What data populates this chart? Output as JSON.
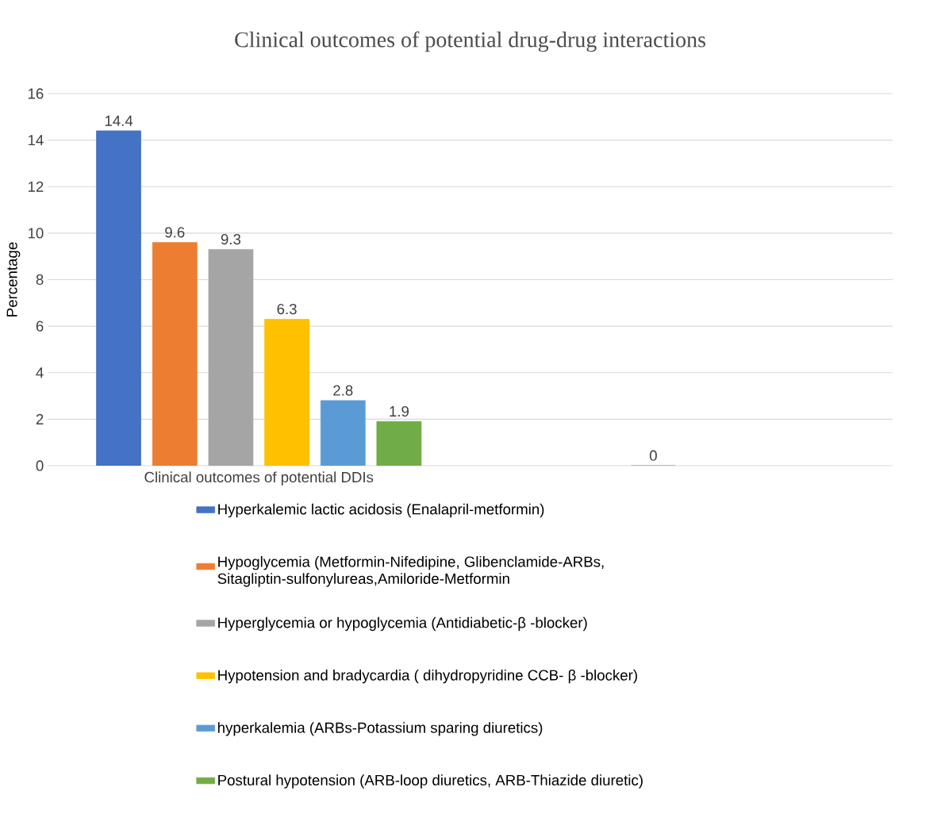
{
  "chart_data": {
    "type": "bar",
    "title": "Clinical outcomes of potential drug-drug interactions",
    "ylabel": "Percentage",
    "categories": [
      "Clinical outcomes of potential DDIs",
      null
    ],
    "series": [
      {
        "name": "Hyperkalemic lactic acidosis (Enalapril-metformin)",
        "color": "#4472c4",
        "values": [
          14.4,
          null
        ]
      },
      {
        "name": "Hypoglycemia (Metformin-Nifedipine, Glibenclamide-ARBs, Sitagliptin-sulfonylureas,Amiloride-Metformin",
        "color": "#ed7d31",
        "values": [
          9.6,
          null
        ]
      },
      {
        "name": "Hyperglycemia or hypoglycemia (Antidiabetic-β -blocker)",
        "color": "#a5a5a5",
        "values": [
          9.3,
          0
        ]
      },
      {
        "name": "Hypotension and bradycardia (  dihydropyridine CCB- β -blocker)",
        "color": "#ffc000",
        "values": [
          6.3,
          null
        ]
      },
      {
        "name": "hyperkalemia (ARBs-Potassium sparing diuretics)",
        "color": "#5b9bd5",
        "values": [
          2.8,
          null
        ]
      },
      {
        "name": "Postural hypotension (ARB-loop diuretics, ARB-Thiazide diuretic)",
        "color": "#70ad47",
        "values": [
          1.9,
          null
        ]
      }
    ],
    "ylim": [
      0,
      16
    ],
    "yticks": [
      0,
      2,
      4,
      6,
      8,
      10,
      12,
      14,
      16
    ],
    "grid": "y",
    "legend": "bottom",
    "data_labels": true
  }
}
